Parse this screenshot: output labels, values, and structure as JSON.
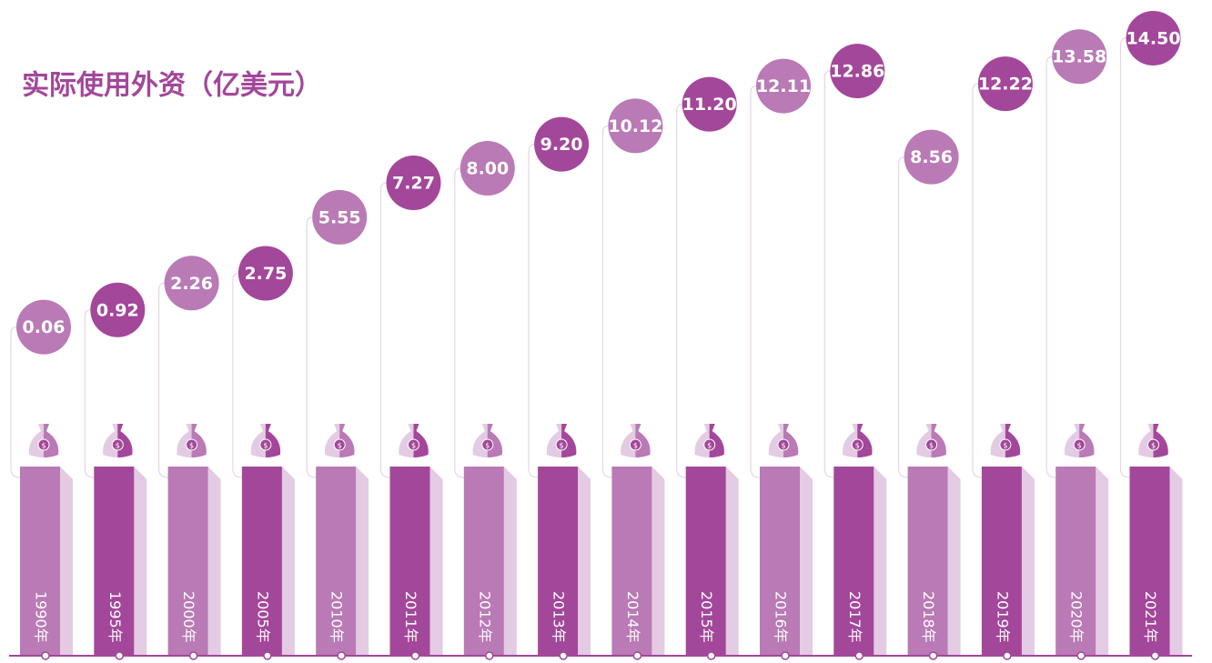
{
  "chart_data": {
    "type": "dot",
    "title": "实际使用外资（亿美元）",
    "categories": [
      "1990年",
      "1995年",
      "2000年",
      "2005年",
      "2010年",
      "2011年",
      "2012年",
      "2013年",
      "2014年",
      "2015年",
      "2016年",
      "2017年",
      "2018年",
      "2019年",
      "2020年",
      "2021年"
    ],
    "values": [
      0.06,
      0.92,
      2.26,
      2.75,
      5.55,
      7.27,
      8.0,
      9.2,
      10.12,
      11.2,
      12.11,
      12.86,
      8.56,
      12.22,
      13.58,
      14.5
    ],
    "value_labels": [
      "0.06",
      "0.92",
      "2.26",
      "2.75",
      "5.55",
      "7.27",
      "8.00",
      "9.20",
      "10.12",
      "11.20",
      "12.11",
      "12.86",
      "8.56",
      "12.22",
      "13.58",
      "14.50"
    ],
    "colors": [
      "#b97ab5",
      "#a3479a"
    ],
    "ylim": [
      0,
      15
    ]
  }
}
